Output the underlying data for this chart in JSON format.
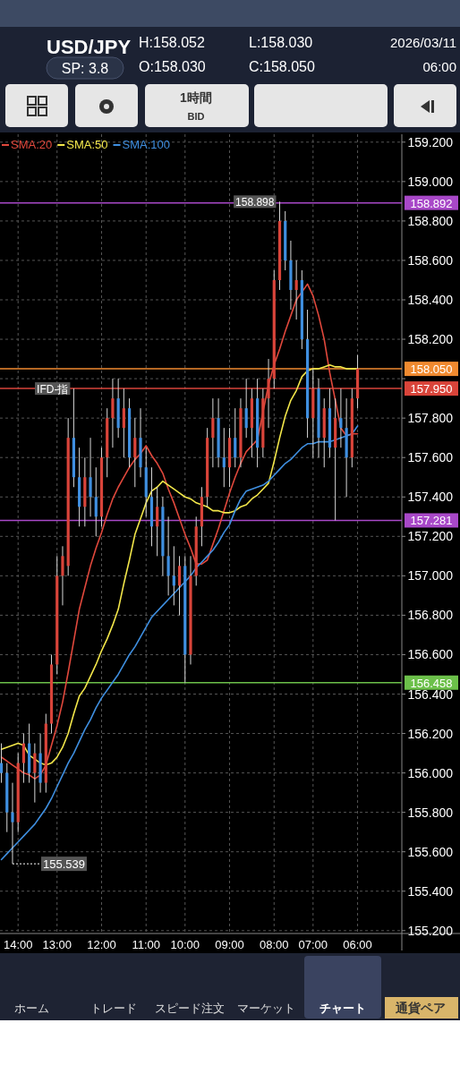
{
  "chart_data": {
    "type": "candlestick",
    "title": "USD/JPY",
    "annotations": [
      "SP: 3.8",
      "H:158.052",
      "L:158.030",
      "O:158.030",
      "C:158.050",
      "2026/03/11",
      "06:00",
      "1時間",
      "BID",
      "ホーム",
      "トレード",
      "スピード注文",
      "マーケット",
      "チャート",
      "通貨ペア",
      {
        "text": "IFD-指",
        "y": 157.95
      },
      {
        "text": "158.898",
        "y": 158.898
      },
      "155.539"
    ],
    "categories": [
      null,
      null,
      null,
      "14:00",
      null,
      null,
      null,
      null,
      null,
      null,
      "13:00",
      null,
      null,
      null,
      null,
      null,
      null,
      null,
      "12:00",
      null,
      null,
      null,
      null,
      null,
      null,
      null,
      "11:00",
      null,
      null,
      null,
      null,
      null,
      null,
      "10:00",
      null,
      null,
      null,
      null,
      null,
      null,
      null,
      "09:00",
      null,
      null,
      null,
      null,
      null,
      null,
      null,
      "08:00",
      null,
      null,
      null,
      null,
      null,
      null,
      "07:00",
      null,
      null,
      null,
      null,
      null,
      null,
      null,
      "06:00"
    ],
    "ohlc": [
      [
        156.05,
        156.15,
        155.95,
        156.0
      ],
      [
        156.0,
        156.05,
        155.7,
        155.8
      ],
      [
        155.8,
        155.95,
        155.539,
        155.75
      ],
      [
        155.75,
        156.1,
        155.7,
        156.05
      ],
      [
        156.05,
        156.2,
        155.95,
        156.15
      ],
      [
        156.15,
        156.25,
        155.95,
        156.0
      ],
      [
        156.0,
        156.15,
        155.85,
        156.1
      ],
      [
        156.1,
        156.2,
        155.9,
        155.95
      ],
      [
        155.95,
        156.3,
        155.9,
        156.25
      ],
      [
        156.25,
        156.6,
        156.2,
        156.55
      ],
      [
        156.55,
        157.1,
        156.5,
        157.0
      ],
      [
        157.0,
        157.15,
        156.85,
        157.1
      ],
      [
        157.05,
        157.8,
        157.0,
        157.7
      ],
      [
        157.7,
        157.95,
        157.45,
        157.5
      ],
      [
        157.5,
        157.65,
        157.25,
        157.35
      ],
      [
        157.35,
        157.6,
        157.25,
        157.5
      ],
      [
        157.5,
        157.7,
        157.3,
        157.4
      ],
      [
        157.4,
        157.55,
        157.2,
        157.3
      ],
      [
        157.3,
        157.65,
        157.25,
        157.6
      ],
      [
        157.6,
        157.85,
        157.5,
        157.8
      ],
      [
        157.8,
        158.0,
        157.65,
        157.9
      ],
      [
        157.9,
        158.0,
        157.7,
        157.75
      ],
      [
        157.75,
        157.95,
        157.6,
        157.85
      ],
      [
        157.85,
        157.9,
        157.55,
        157.6
      ],
      [
        157.6,
        157.8,
        157.45,
        157.7
      ],
      [
        157.7,
        157.85,
        157.5,
        157.55
      ],
      [
        157.55,
        157.65,
        157.3,
        157.4
      ],
      [
        157.4,
        157.55,
        157.15,
        157.25
      ],
      [
        157.25,
        157.45,
        157.1,
        157.35
      ],
      [
        157.35,
        157.4,
        157.0,
        157.1
      ],
      [
        157.1,
        157.3,
        156.9,
        157.0
      ],
      [
        157.0,
        157.15,
        156.85,
        156.95
      ],
      [
        156.95,
        157.1,
        156.8,
        157.05
      ],
      [
        157.05,
        157.1,
        156.458,
        156.6
      ],
      [
        156.6,
        157.1,
        156.55,
        157.0
      ],
      [
        157.0,
        157.3,
        156.95,
        157.25
      ],
      [
        157.25,
        157.45,
        157.15,
        157.4
      ],
      [
        157.4,
        157.75,
        157.35,
        157.7
      ],
      [
        157.7,
        157.9,
        157.55,
        157.8
      ],
      [
        157.8,
        157.9,
        157.55,
        157.6
      ],
      [
        157.6,
        157.75,
        157.45,
        157.55
      ],
      [
        157.55,
        157.75,
        157.45,
        157.7
      ],
      [
        157.7,
        157.85,
        157.55,
        157.6
      ],
      [
        157.6,
        157.9,
        157.55,
        157.85
      ],
      [
        157.85,
        158.0,
        157.7,
        157.75
      ],
      [
        157.75,
        157.95,
        157.6,
        157.9
      ],
      [
        157.9,
        158.0,
        157.55,
        157.65
      ],
      [
        157.65,
        157.95,
        157.6,
        157.9
      ],
      [
        157.9,
        158.1,
        157.75,
        158.0
      ],
      [
        158.0,
        158.55,
        157.95,
        158.5
      ],
      [
        158.5,
        158.898,
        158.45,
        158.8
      ],
      [
        158.8,
        158.85,
        158.55,
        158.6
      ],
      [
        158.6,
        158.7,
        158.35,
        158.45
      ],
      [
        158.45,
        158.6,
        158.3,
        158.5
      ],
      [
        158.5,
        158.55,
        158.15,
        158.2
      ],
      [
        158.2,
        158.35,
        157.7,
        157.8
      ],
      [
        157.8,
        158.05,
        157.6,
        157.95
      ],
      [
        157.95,
        158.0,
        157.6,
        157.7
      ],
      [
        157.7,
        157.9,
        157.55,
        157.85
      ],
      [
        157.85,
        157.95,
        157.6,
        157.65
      ],
      [
        157.65,
        157.9,
        157.281,
        157.8
      ],
      [
        157.8,
        157.95,
        157.65,
        157.75
      ],
      [
        157.75,
        157.9,
        157.4,
        157.6
      ],
      [
        157.6,
        157.95,
        157.55,
        157.9
      ],
      [
        157.9,
        158.12,
        157.85,
        158.05
      ]
    ],
    "series": [
      {
        "name": "SMA:20",
        "type": "line",
        "color": "#e0483c",
        "values": [
          156.08,
          156.06,
          156.04,
          156.02,
          156.0,
          155.99,
          155.97,
          155.99,
          156.04,
          156.14,
          156.24,
          156.36,
          156.51,
          156.67,
          156.83,
          156.94,
          157.05,
          157.14,
          157.22,
          157.31,
          157.39,
          157.45,
          157.5,
          157.55,
          157.59,
          157.62,
          157.66,
          157.61,
          157.57,
          157.52,
          157.44,
          157.37,
          157.29,
          157.21,
          157.14,
          157.06,
          157.06,
          157.08,
          157.16,
          157.24,
          157.33,
          157.42,
          157.5,
          157.57,
          157.63,
          157.66,
          157.69,
          157.83,
          157.97,
          158.07,
          158.15,
          158.24,
          158.32,
          158.4,
          158.44,
          158.48,
          158.42,
          158.32,
          158.2,
          158.03,
          157.89,
          157.75,
          157.71,
          157.72,
          157.72
        ]
      },
      {
        "name": "SMA:50",
        "type": "line",
        "color": "#f2e64a",
        "values": [
          156.12,
          156.13,
          156.14,
          156.15,
          156.14,
          156.09,
          156.07,
          156.05,
          156.04,
          156.05,
          156.08,
          156.13,
          156.2,
          156.3,
          156.39,
          156.43,
          156.49,
          156.55,
          156.62,
          156.68,
          156.75,
          156.83,
          156.96,
          157.08,
          157.21,
          157.29,
          157.37,
          157.43,
          157.45,
          157.48,
          157.46,
          157.44,
          157.42,
          157.4,
          157.39,
          157.37,
          157.36,
          157.35,
          157.33,
          157.33,
          157.32,
          157.32,
          157.33,
          157.35,
          157.36,
          157.39,
          157.41,
          157.44,
          157.47,
          157.58,
          157.7,
          157.81,
          157.89,
          157.94,
          158.01,
          158.04,
          158.05,
          158.05,
          158.06,
          158.07,
          158.06,
          158.06,
          158.05,
          158.05,
          158.05
        ]
      },
      {
        "name": "SMA:100",
        "type": "line",
        "color": "#3f8fe0",
        "values": [
          155.56,
          155.59,
          155.62,
          155.65,
          155.68,
          155.71,
          155.74,
          155.78,
          155.82,
          155.87,
          155.93,
          155.99,
          156.05,
          156.1,
          156.16,
          156.22,
          156.27,
          156.33,
          156.38,
          156.42,
          156.46,
          156.5,
          156.55,
          156.6,
          156.64,
          156.69,
          156.74,
          156.79,
          156.82,
          156.85,
          156.88,
          156.91,
          156.94,
          156.97,
          157.0,
          157.04,
          157.07,
          157.1,
          157.13,
          157.17,
          157.22,
          157.26,
          157.33,
          157.39,
          157.43,
          157.44,
          157.45,
          157.46,
          157.48,
          157.51,
          157.54,
          157.57,
          157.59,
          157.62,
          157.65,
          157.67,
          157.67,
          157.68,
          157.68,
          157.68,
          157.69,
          157.7,
          157.71,
          157.72,
          157.76
        ]
      }
    ],
    "ref_lines": [
      {
        "axis": "y",
        "value": 158.892,
        "label": "158.892",
        "color": "#a848c8"
      },
      {
        "axis": "y",
        "value": 158.05,
        "label": "158.050",
        "color": "#f08a30"
      },
      {
        "axis": "y",
        "value": 157.95,
        "label": "157.950",
        "color": "#d9443a"
      },
      {
        "axis": "y",
        "value": 157.281,
        "label": "157.281",
        "color": "#a848c8"
      },
      {
        "axis": "y",
        "value": 156.458,
        "label": "156.458",
        "color": "#6cc04a"
      }
    ],
    "ylim": [
      155.19,
      159.24
    ],
    "yticks": [
      {
        "value": 155.2,
        "label": "155.200"
      },
      {
        "value": 155.4,
        "label": "155.400"
      },
      {
        "value": 155.6,
        "label": "155.600"
      },
      {
        "value": 155.8,
        "label": "155.800"
      },
      {
        "value": 156.0,
        "label": "156.000"
      },
      {
        "value": 156.2,
        "label": "156.200"
      },
      {
        "value": 156.4,
        "label": "156.400"
      },
      {
        "value": 156.6,
        "label": "156.600"
      },
      {
        "value": 156.8,
        "label": "156.800"
      },
      {
        "value": 157.0,
        "label": "157.000"
      },
      {
        "value": 157.2,
        "label": "157.200"
      },
      {
        "value": 157.4,
        "label": "157.400"
      },
      {
        "value": 157.6,
        "label": "157.600"
      },
      {
        "value": 157.8,
        "label": "157.800"
      },
      {
        "value": 158.0,
        "label": null
      },
      {
        "value": 158.2,
        "label": "158.200"
      },
      {
        "value": 158.4,
        "label": "158.400"
      },
      {
        "value": 158.6,
        "label": "158.600"
      },
      {
        "value": 158.8,
        "label": "158.800"
      },
      {
        "value": 159.0,
        "label": "159.000"
      },
      {
        "value": 159.2,
        "label": "159.200"
      }
    ],
    "grid": true,
    "legend": "top left",
    "marker": "none",
    "line_style": "solid"
  }
}
